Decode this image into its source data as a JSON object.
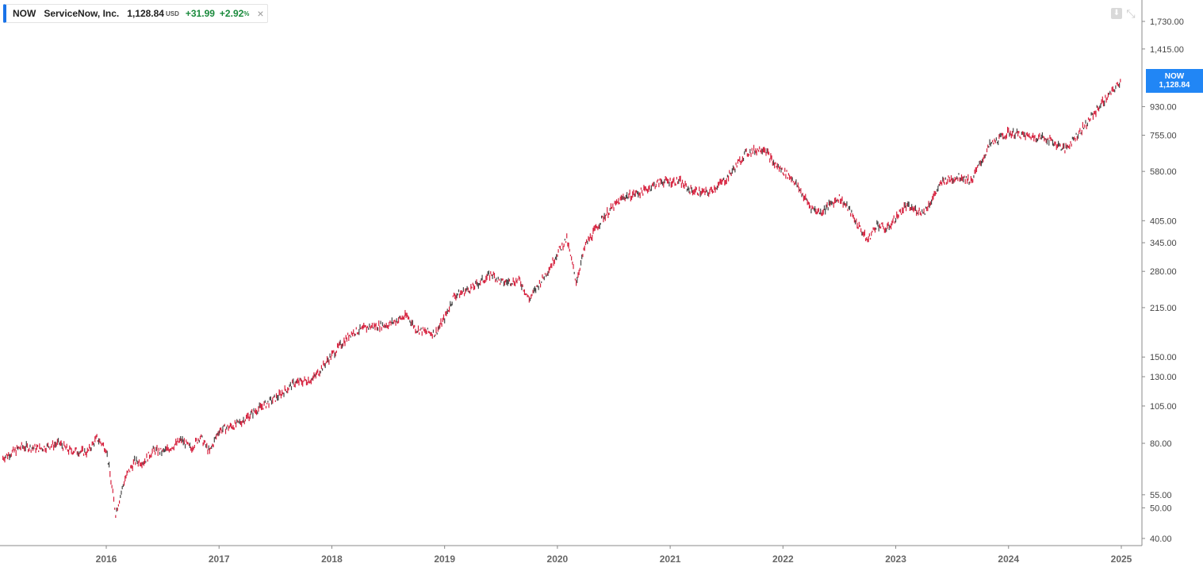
{
  "legend": {
    "symbol": "NOW",
    "name": "ServiceNow, Inc.",
    "price": "1,128.84",
    "currency": "USD",
    "change": "+31.99",
    "change_pct": "+2.92",
    "pct_sign": "%",
    "close": "×"
  },
  "price_tag": {
    "symbol": "NOW",
    "value": "1,128.84"
  },
  "colors": {
    "accent": "#1a73e8",
    "up": "#1a8a3c",
    "series": "#d6203d",
    "series_alt": "#444444",
    "tag": "#2186f5"
  },
  "chart_data": {
    "type": "line",
    "scale": "log",
    "series": [
      {
        "name": "NOW",
        "x": [
          "2015-02",
          "2015-04",
          "2015-06",
          "2015-08",
          "2015-09",
          "2015-11",
          "2015-12",
          "2016-01",
          "2016-02",
          "2016-03",
          "2016-04",
          "2016-05",
          "2016-06",
          "2016-07",
          "2016-08",
          "2016-09",
          "2016-10",
          "2016-11",
          "2016-12",
          "2017-01",
          "2017-03",
          "2017-05",
          "2017-07",
          "2017-09",
          "2017-11",
          "2018-01",
          "2018-03",
          "2018-05",
          "2018-07",
          "2018-09",
          "2018-10",
          "2018-12",
          "2019-01",
          "2019-02",
          "2019-04",
          "2019-06",
          "2019-07",
          "2019-09",
          "2019-10",
          "2019-12",
          "2020-01",
          "2020-02",
          "2020-03",
          "2020-04",
          "2020-06",
          "2020-08",
          "2020-10",
          "2020-12",
          "2021-02",
          "2021-03",
          "2021-05",
          "2021-07",
          "2021-09",
          "2021-11",
          "2021-12",
          "2022-02",
          "2022-04",
          "2022-05",
          "2022-07",
          "2022-08",
          "2022-10",
          "2022-11",
          "2022-12",
          "2023-02",
          "2023-04",
          "2023-06",
          "2023-08",
          "2023-09",
          "2023-11",
          "2024-01",
          "2024-03",
          "2024-05",
          "2024-07",
          "2024-09",
          "2024-11",
          "2024-12",
          "2025-01"
        ],
        "y": [
          72,
          78,
          77,
          80,
          76,
          75,
          83,
          77,
          48,
          62,
          70,
          70,
          76,
          75,
          78,
          82,
          77,
          84,
          75,
          88,
          92,
          102,
          111,
          124,
          128,
          152,
          178,
          187,
          190,
          203,
          183,
          178,
          199,
          234,
          249,
          275,
          258,
          262,
          228,
          282,
          320,
          354,
          260,
          340,
          420,
          480,
          500,
          539,
          540,
          508,
          495,
          550,
          660,
          690,
          615,
          550,
          445,
          430,
          480,
          440,
          350,
          395,
          380,
          450,
          430,
          540,
          560,
          540,
          700,
          770,
          750,
          740,
          680,
          800,
          960,
          1030,
          1128.84
        ]
      }
    ],
    "yticks": [
      "1,730.00",
      "1,415.00",
      "930.00",
      "755.00",
      "580.00",
      "405.00",
      "345.00",
      "280.00",
      "215.00",
      "150.00",
      "130.00",
      "105.00",
      "80.00",
      "55.00",
      "50.00",
      "40.00"
    ],
    "ytick_values": [
      1730,
      1415,
      930,
      755,
      580,
      405,
      345,
      280,
      215,
      150,
      130,
      105,
      80,
      55,
      50,
      40
    ],
    "xticks": [
      "2016",
      "2017",
      "2018",
      "2019",
      "2020",
      "2021",
      "2022",
      "2023",
      "2024",
      "2025"
    ],
    "x_range": [
      "2015-02",
      "2025-02"
    ],
    "ylim": [
      38,
      1900
    ],
    "grid": false
  }
}
